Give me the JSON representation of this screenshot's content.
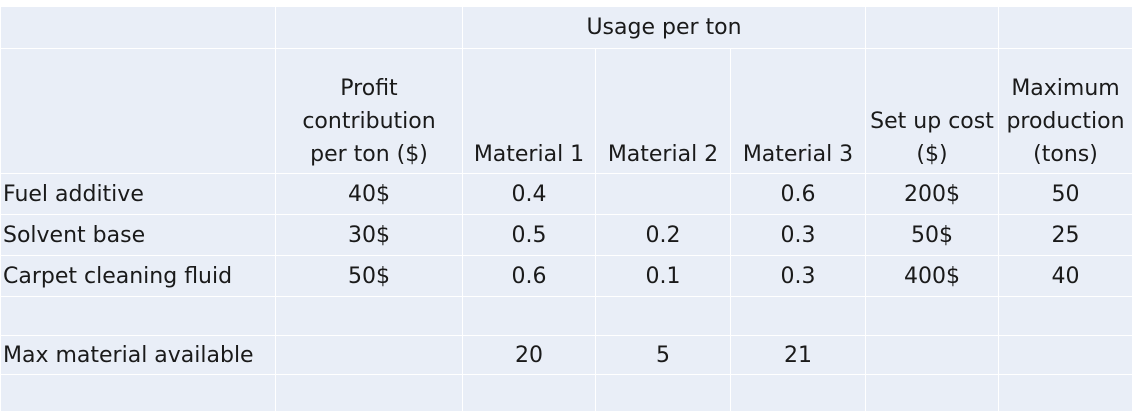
{
  "table": {
    "group_header": "Usage per ton",
    "columns": {
      "profit": [
        "Profit",
        "contribution",
        "per ton ($)"
      ],
      "material1": "Material 1",
      "material2": "Material 2",
      "material3": "Material 3",
      "setup": [
        "Set up cost",
        "($)"
      ],
      "maxprod": [
        "Maximum",
        "production",
        "(tons)"
      ]
    },
    "rows": [
      {
        "name": "Fuel additive",
        "profit": "40$",
        "m1": "0.4",
        "m2": "",
        "m3": "0.6",
        "setup": "200$",
        "max": "50"
      },
      {
        "name": "Solvent base",
        "profit": "30$",
        "m1": "0.5",
        "m2": "0.2",
        "m3": "0.3",
        "setup": "50$",
        "max": "25"
      },
      {
        "name": "Carpet cleaning fluid",
        "profit": "50$",
        "m1": "0.6",
        "m2": "0.1",
        "m3": "0.3",
        "setup": "400$",
        "max": "40"
      }
    ],
    "max_row": {
      "label": "Max material available",
      "m1": "20",
      "m2": "5",
      "m3": "21"
    }
  }
}
